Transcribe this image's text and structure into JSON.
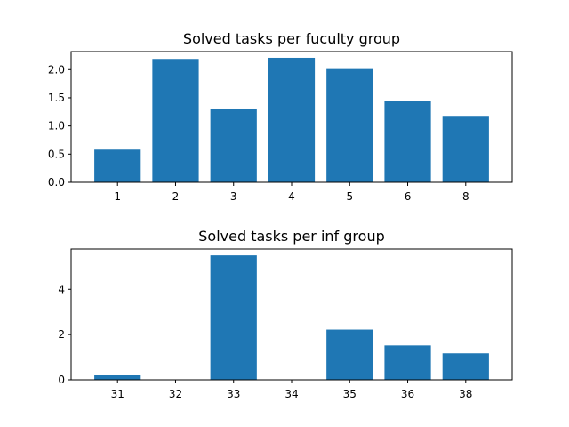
{
  "chart_data": [
    {
      "type": "bar",
      "title": "Solved tasks per fuculty group",
      "xlabel": "",
      "ylabel": "",
      "categories": [
        "1",
        "2",
        "3",
        "4",
        "5",
        "6",
        "8"
      ],
      "values": [
        0.58,
        2.19,
        1.31,
        2.21,
        2.01,
        1.44,
        1.18
      ],
      "ylim": [
        0,
        2.32
      ],
      "yticks": [
        "0.0",
        "0.5",
        "1.0",
        "1.5",
        "2.0"
      ],
      "ytick_values": [
        0,
        0.5,
        1.0,
        1.5,
        2.0
      ],
      "bar_color": "#1f77b4",
      "grid": false,
      "legend": "none"
    },
    {
      "type": "bar",
      "title": "Solved tasks per inf group",
      "xlabel": "",
      "ylabel": "",
      "categories": [
        "31",
        "32",
        "33",
        "34",
        "35",
        "36",
        "38"
      ],
      "values": [
        0.22,
        0,
        5.5,
        0,
        2.22,
        1.52,
        1.17
      ],
      "ylim": [
        0,
        5.78
      ],
      "yticks": [
        "0",
        "2",
        "4"
      ],
      "ytick_values": [
        0,
        2,
        4
      ],
      "bar_color": "#1f77b4",
      "grid": false,
      "legend": "none"
    }
  ]
}
